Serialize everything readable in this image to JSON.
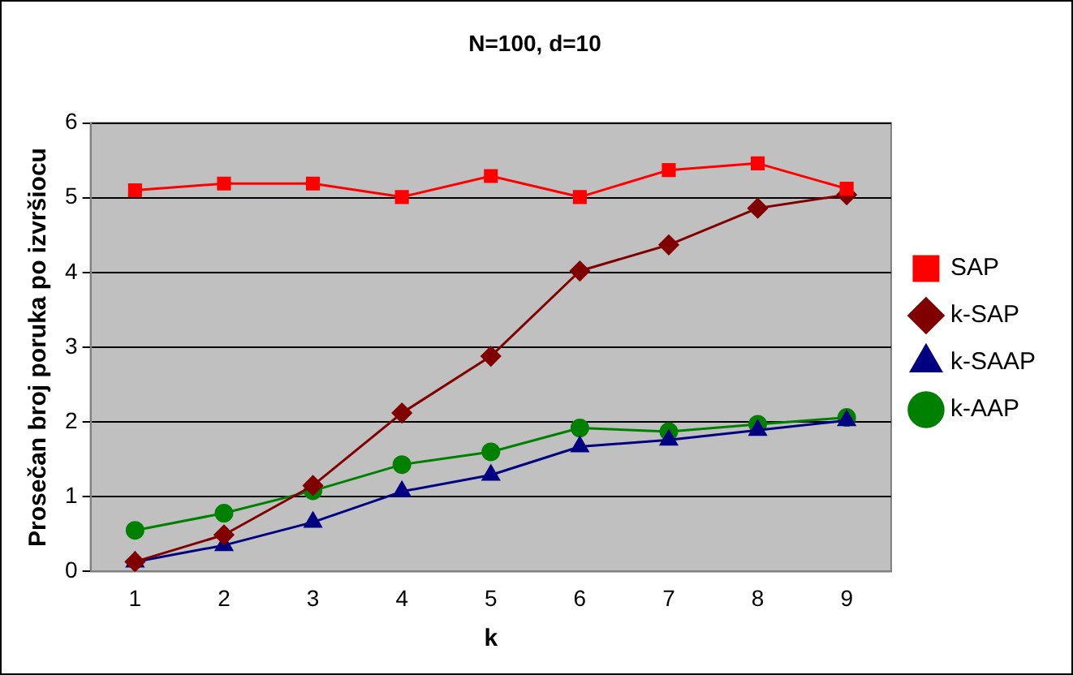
{
  "chart_data": {
    "type": "line",
    "title": "N=100, d=10",
    "xlabel": "k",
    "ylabel": "Prosečan broj poruka po izvršiocu",
    "categories": [
      "1",
      "2",
      "3",
      "4",
      "5",
      "6",
      "7",
      "8",
      "9"
    ],
    "ylim": [
      0,
      6
    ],
    "yticks": [
      0,
      1,
      2,
      3,
      4,
      5,
      6
    ],
    "grid": "y",
    "legend": "right",
    "line_style": "solid",
    "series": [
      {
        "name": "SAP",
        "color": "#ff0000",
        "marker": "square",
        "values": [
          5.1,
          5.19,
          5.19,
          5.01,
          5.29,
          5.01,
          5.37,
          5.46,
          5.12
        ]
      },
      {
        "name": "k-SAP",
        "color": "#800000",
        "marker": "diamond",
        "values": [
          0.13,
          0.49,
          1.15,
          2.12,
          2.88,
          4.02,
          4.37,
          4.86,
          5.04
        ]
      },
      {
        "name": "k-SAAP",
        "color": "#000080",
        "marker": "triangle",
        "values": [
          0.13,
          0.35,
          0.66,
          1.07,
          1.29,
          1.67,
          1.76,
          1.89,
          2.02
        ]
      },
      {
        "name": "k-AAP",
        "color": "#008000",
        "marker": "circle",
        "values": [
          0.55,
          0.78,
          1.08,
          1.43,
          1.6,
          1.92,
          1.87,
          1.97,
          2.06
        ]
      }
    ]
  }
}
